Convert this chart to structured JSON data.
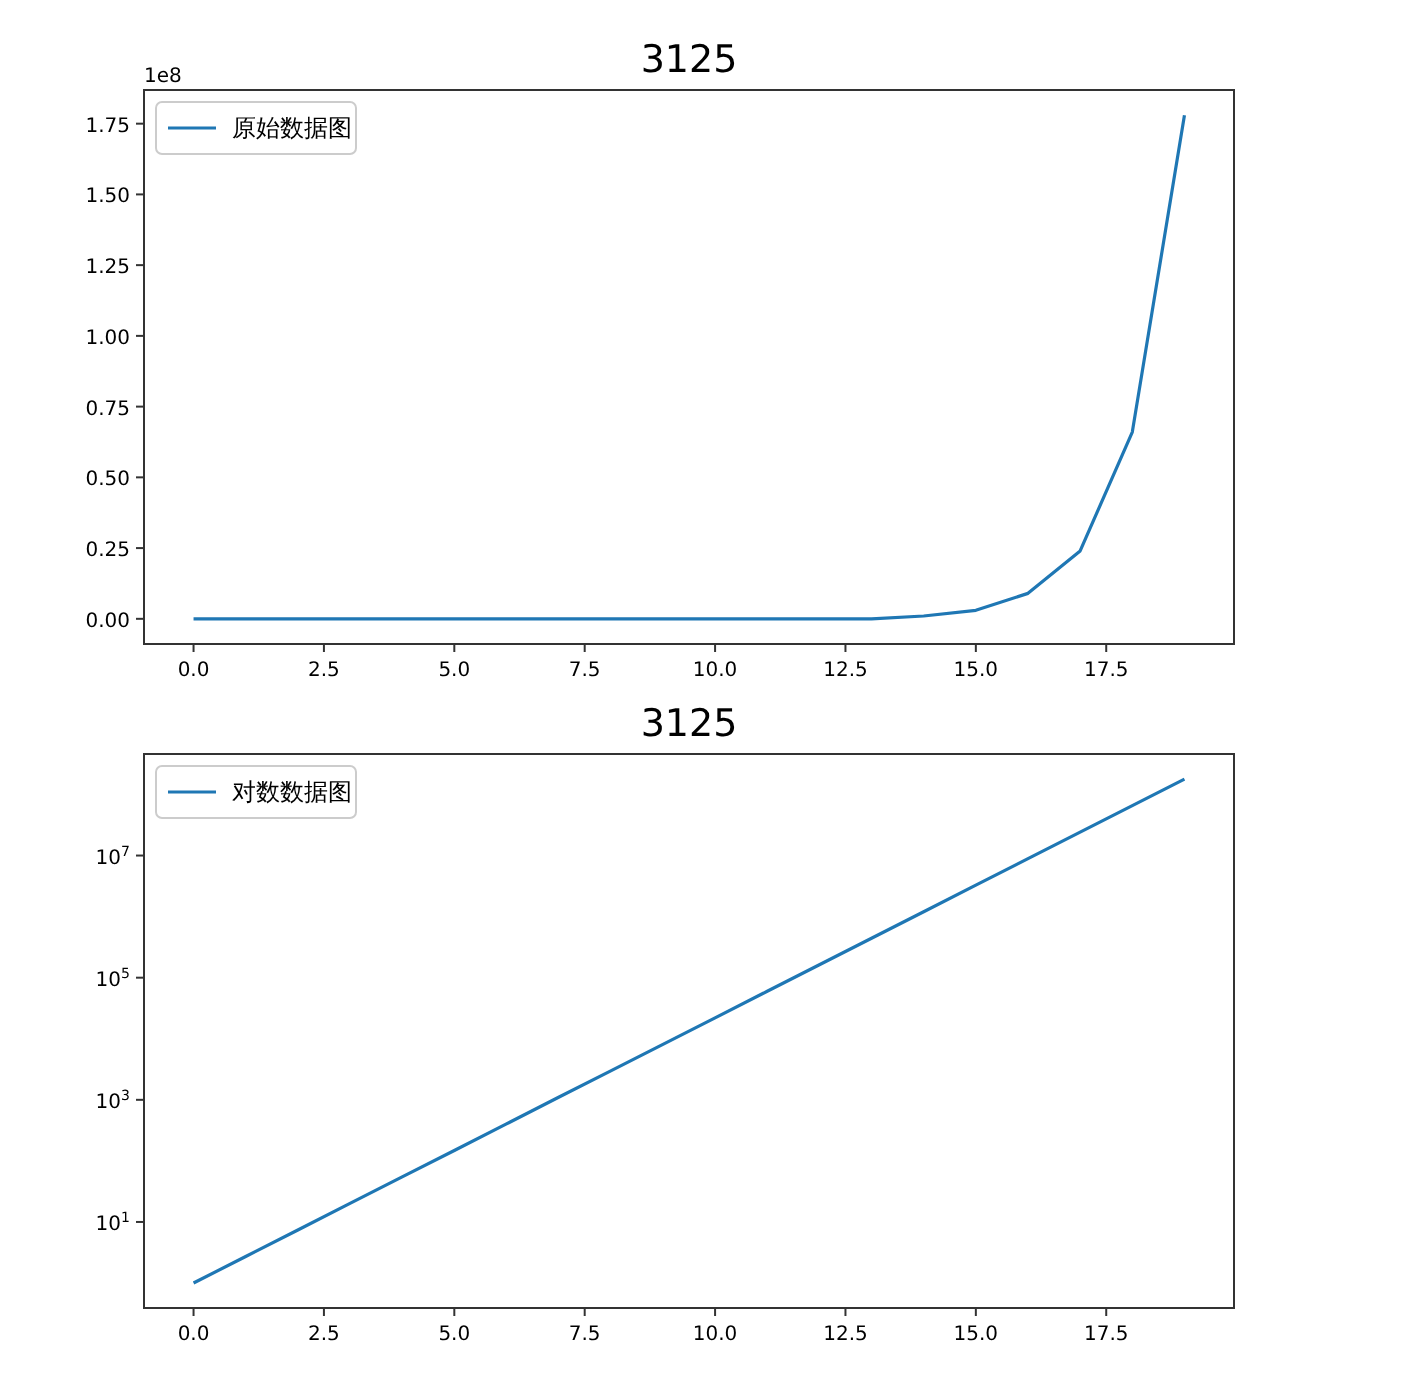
{
  "chart_data": [
    {
      "type": "line",
      "title": "3125",
      "x": [
        0,
        1,
        2,
        3,
        4,
        5,
        6,
        7,
        8,
        9,
        10,
        11,
        12,
        13,
        14,
        15,
        16,
        17,
        18,
        19
      ],
      "series": [
        {
          "name": "原始数据图",
          "color": "#1f77b4",
          "values": [
            0,
            0,
            0,
            0,
            0,
            0,
            0,
            0,
            0,
            0,
            0,
            0,
            0,
            0,
            0.01,
            0.03,
            0.09,
            0.24,
            0.66,
            1.78
          ]
        }
      ],
      "xlim": [
        -0.95,
        19.95
      ],
      "xticks": [
        {
          "value": 0,
          "label": "0.0"
        },
        {
          "value": 2.5,
          "label": "2.5"
        },
        {
          "value": 5,
          "label": "5.0"
        },
        {
          "value": 7.5,
          "label": "7.5"
        },
        {
          "value": 10,
          "label": "10.0"
        },
        {
          "value": 12.5,
          "label": "12.5"
        },
        {
          "value": 15,
          "label": "15.0"
        },
        {
          "value": 17.5,
          "label": "17.5"
        }
      ],
      "ylim": [
        -0.089,
        1.869
      ],
      "yticks": [
        {
          "value": 0,
          "label": "0.00"
        },
        0.25,
        {
          "value": 0.5,
          "label": "0.50"
        },
        0.75,
        {
          "value": 1,
          "label": "1.00"
        },
        1.25,
        {
          "value": 1.5,
          "label": "1.50"
        },
        1.75
      ],
      "annotations": [
        "1e8"
      ],
      "legend": "top left",
      "grid": false
    },
    {
      "type": "line",
      "title": "3125",
      "x": [
        0,
        1,
        2,
        3,
        4,
        5,
        6,
        7,
        8,
        9,
        10,
        11,
        12,
        13,
        14,
        15,
        16,
        17,
        18,
        19
      ],
      "series": [
        {
          "name": "对数数据图",
          "color": "#1f77b4",
          "values": [
            1,
            2.72,
            7.39,
            20.1,
            54.6,
            148,
            403,
            1100,
            2980,
            8100,
            22000,
            59900,
            163000,
            442000,
            1200000,
            3270000,
            8890000,
            24200000,
            65700000,
            178000000
          ]
        }
      ],
      "xlim": [
        -0.95,
        19.95
      ],
      "xticks": [
        {
          "value": 0,
          "label": "0.0"
        },
        {
          "value": 2.5,
          "label": "2.5"
        },
        {
          "value": 5,
          "label": "5.0"
        },
        {
          "value": 7.5,
          "label": "7.5"
        },
        {
          "value": 10,
          "label": "10.0"
        },
        {
          "value": 12.5,
          "label": "12.5"
        },
        {
          "value": 15,
          "label": "15.0"
        },
        {
          "value": 17.5,
          "label": "17.5"
        }
      ],
      "ylim": [
        0.39,
        460000000
      ],
      "yticks": [
        {
          "value": 10,
          "label": "10$^{1}$"
        },
        {
          "value": 1000,
          "label": "10$^{3}$"
        },
        {
          "value": 100000,
          "label": "10$^{5}$"
        },
        {
          "value": 10000000,
          "label": "10$^{7}$"
        }
      ],
      "log": "y",
      "legend": "top left",
      "grid": false
    }
  ]
}
